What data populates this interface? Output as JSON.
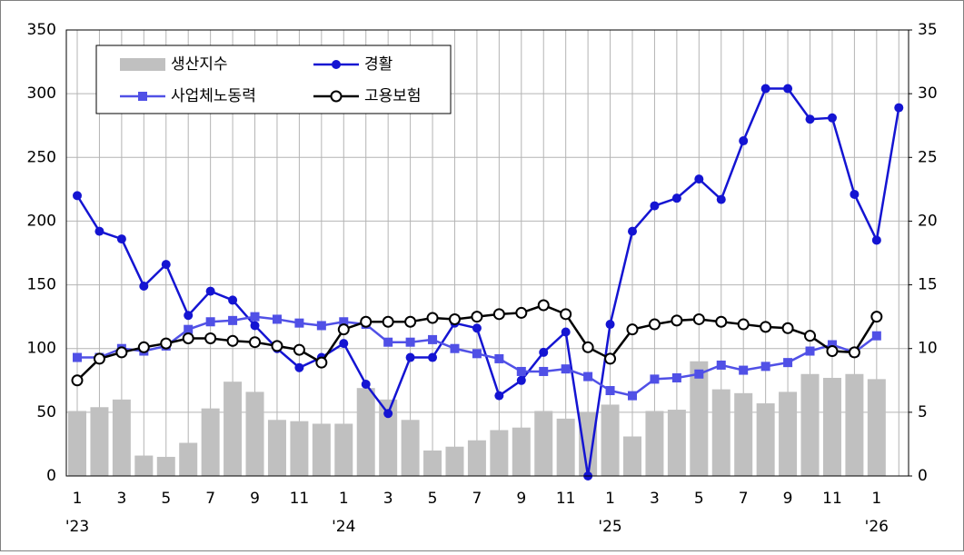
{
  "chart_data": {
    "type": "combo",
    "categories": [
      "1",
      null,
      "3",
      null,
      "5",
      null,
      "7",
      null,
      "9",
      null,
      "11",
      null,
      "1",
      null,
      "3",
      null,
      "5",
      null,
      "7",
      null,
      "9",
      null,
      "11",
      null,
      "1",
      null,
      "3",
      null,
      "5",
      null,
      "7",
      null,
      "9",
      null,
      "11",
      null,
      "1",
      null
    ],
    "year_labels": [
      "'23",
      null,
      null,
      null,
      null,
      null,
      null,
      null,
      null,
      null,
      null,
      null,
      "'24",
      null,
      null,
      null,
      null,
      null,
      null,
      null,
      null,
      null,
      null,
      null,
      "'25",
      null,
      null,
      null,
      null,
      null,
      null,
      null,
      null,
      null,
      null,
      null,
      "'26",
      null
    ],
    "series": [
      {
        "name": "생산지수",
        "type": "bar",
        "color": "#c0c0c0",
        "axis": "y",
        "values": [
          51,
          54,
          60,
          16,
          15,
          26,
          53,
          74,
          66,
          44,
          43,
          41,
          41,
          69,
          60,
          44,
          20,
          23,
          28,
          36,
          38,
          51,
          45,
          50,
          56,
          31,
          51,
          52,
          90,
          68,
          65,
          57,
          66,
          80,
          77,
          80,
          76,
          null
        ]
      },
      {
        "name": "경활",
        "type": "line",
        "marker": "circle",
        "color": "#1414d2",
        "axis": "y",
        "values": [
          220,
          192,
          186,
          149,
          166,
          126,
          145,
          138,
          118,
          100,
          85,
          93,
          104,
          72,
          49,
          93,
          93,
          120,
          116,
          63,
          75,
          97,
          113,
          0,
          119,
          192,
          212,
          218,
          233,
          217,
          263,
          304,
          304,
          280,
          281,
          221,
          185,
          289
        ]
      },
      {
        "name": "사업체노동력",
        "type": "line",
        "marker": "square",
        "color": "#5050e6",
        "axis": "y2",
        "values": [
          9.3,
          9.3,
          10.0,
          9.8,
          10.2,
          11.5,
          12.1,
          12.2,
          12.5,
          12.3,
          12.0,
          11.8,
          12.1,
          11.9,
          10.5,
          10.5,
          10.7,
          10.0,
          9.6,
          9.2,
          8.2,
          8.2,
          8.4,
          7.8,
          6.7,
          6.3,
          7.6,
          7.7,
          8.0,
          8.7,
          8.3,
          8.6,
          8.9,
          9.8,
          10.3,
          9.7,
          11.0,
          null
        ]
      },
      {
        "name": "고용보험",
        "type": "line",
        "marker": "open-circle",
        "color": "#000000",
        "axis": "y2",
        "values": [
          7.5,
          9.2,
          9.7,
          10.1,
          10.4,
          10.8,
          10.8,
          10.6,
          10.5,
          10.2,
          9.9,
          8.9,
          11.5,
          12.1,
          12.1,
          12.1,
          12.4,
          12.3,
          12.5,
          12.7,
          12.8,
          13.4,
          12.7,
          10.1,
          9.2,
          11.5,
          11.9,
          12.2,
          12.3,
          12.1,
          11.9,
          11.7,
          11.6,
          11.0,
          9.8,
          9.7,
          12.5,
          null
        ]
      }
    ],
    "ylim": [
      0,
      350
    ],
    "yticks": [
      0,
      50,
      100,
      150,
      200,
      250,
      300,
      350
    ],
    "y2lim": [
      0,
      35
    ],
    "y2ticks": [
      0,
      5,
      10,
      15,
      20,
      25,
      30,
      35
    ],
    "grid": true,
    "legend": "upper left"
  }
}
